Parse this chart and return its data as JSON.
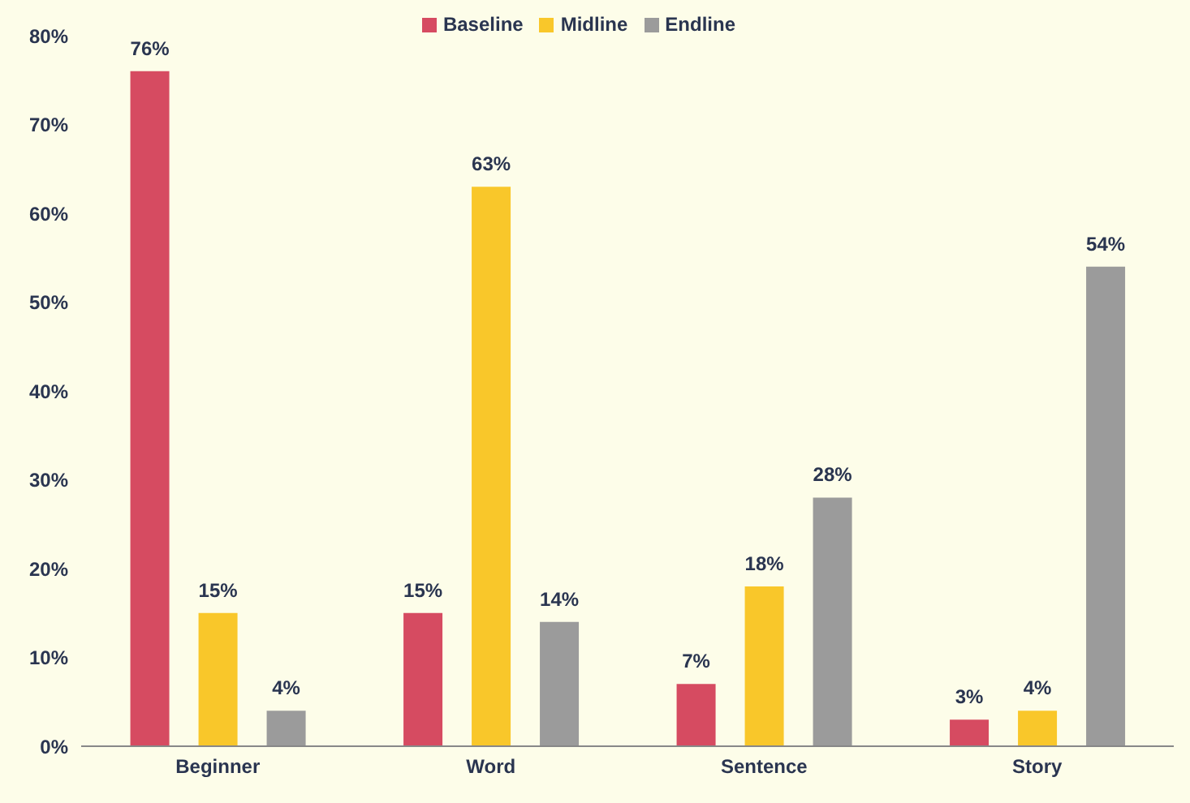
{
  "chart_data": {
    "type": "bar",
    "categories": [
      "Beginner",
      "Word",
      "Sentence",
      "Story"
    ],
    "series": [
      {
        "name": "Baseline",
        "color": "#d64b61",
        "values": [
          76,
          15,
          7,
          3
        ],
        "value_labels": [
          "76%",
          "15%",
          "7%",
          "3%"
        ]
      },
      {
        "name": "Midline",
        "color": "#f9c72a",
        "values": [
          15,
          63,
          18,
          4
        ],
        "value_labels": [
          "15%",
          "63%",
          "18%",
          "4%"
        ]
      },
      {
        "name": "Endline",
        "color": "#9b9b9b",
        "values": [
          4,
          14,
          28,
          54
        ],
        "value_labels": [
          "4%",
          "14%",
          "28%",
          "54%"
        ]
      }
    ],
    "ylim": [
      0,
      80
    ],
    "yticks": [
      {
        "value": 0,
        "label": "0%"
      },
      {
        "value": 10,
        "label": "10%"
      },
      {
        "value": 20,
        "label": "20%"
      },
      {
        "value": 30,
        "label": "30%"
      },
      {
        "value": 40,
        "label": "40%"
      },
      {
        "value": 50,
        "label": "50%"
      },
      {
        "value": 60,
        "label": "60%"
      },
      {
        "value": 70,
        "label": "70%"
      },
      {
        "value": 80,
        "label": "80%"
      }
    ],
    "grid": false,
    "legend": "top"
  }
}
